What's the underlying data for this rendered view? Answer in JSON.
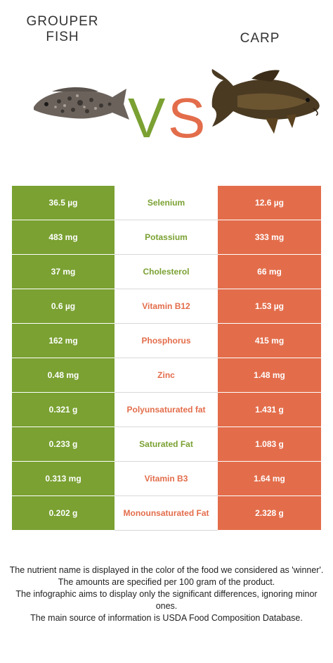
{
  "left_food": {
    "name": "GROUPER\nFISH",
    "color": "#7aa132"
  },
  "right_food": {
    "name": "CARP",
    "color": "#e36d4b"
  },
  "vs": {
    "v": "V",
    "s": "S"
  },
  "rows": [
    {
      "nutrient": "Selenium",
      "left": "36.5 µg",
      "right": "12.6 µg",
      "winner": "left"
    },
    {
      "nutrient": "Potassium",
      "left": "483 mg",
      "right": "333 mg",
      "winner": "left"
    },
    {
      "nutrient": "Cholesterol",
      "left": "37 mg",
      "right": "66 mg",
      "winner": "left"
    },
    {
      "nutrient": "Vitamin B12",
      "left": "0.6 µg",
      "right": "1.53 µg",
      "winner": "right"
    },
    {
      "nutrient": "Phosphorus",
      "left": "162 mg",
      "right": "415 mg",
      "winner": "right"
    },
    {
      "nutrient": "Zinc",
      "left": "0.48 mg",
      "right": "1.48 mg",
      "winner": "right"
    },
    {
      "nutrient": "Polyunsaturated fat",
      "left": "0.321 g",
      "right": "1.431 g",
      "winner": "right"
    },
    {
      "nutrient": "Saturated Fat",
      "left": "0.233 g",
      "right": "1.083 g",
      "winner": "left"
    },
    {
      "nutrient": "Vitamin B3",
      "left": "0.313 mg",
      "right": "1.64 mg",
      "winner": "right"
    },
    {
      "nutrient": "Monounsaturated Fat",
      "left": "0.202 g",
      "right": "2.328 g",
      "winner": "right"
    }
  ],
  "footnote": [
    "The nutrient name is displayed in the color of the food we considered as 'winner'.",
    "The amounts are specified per 100 gram of the product.",
    "The infographic aims to display only the significant differences, ignoring minor ones.",
    "The main source of information is USDA Food Composition Database."
  ]
}
